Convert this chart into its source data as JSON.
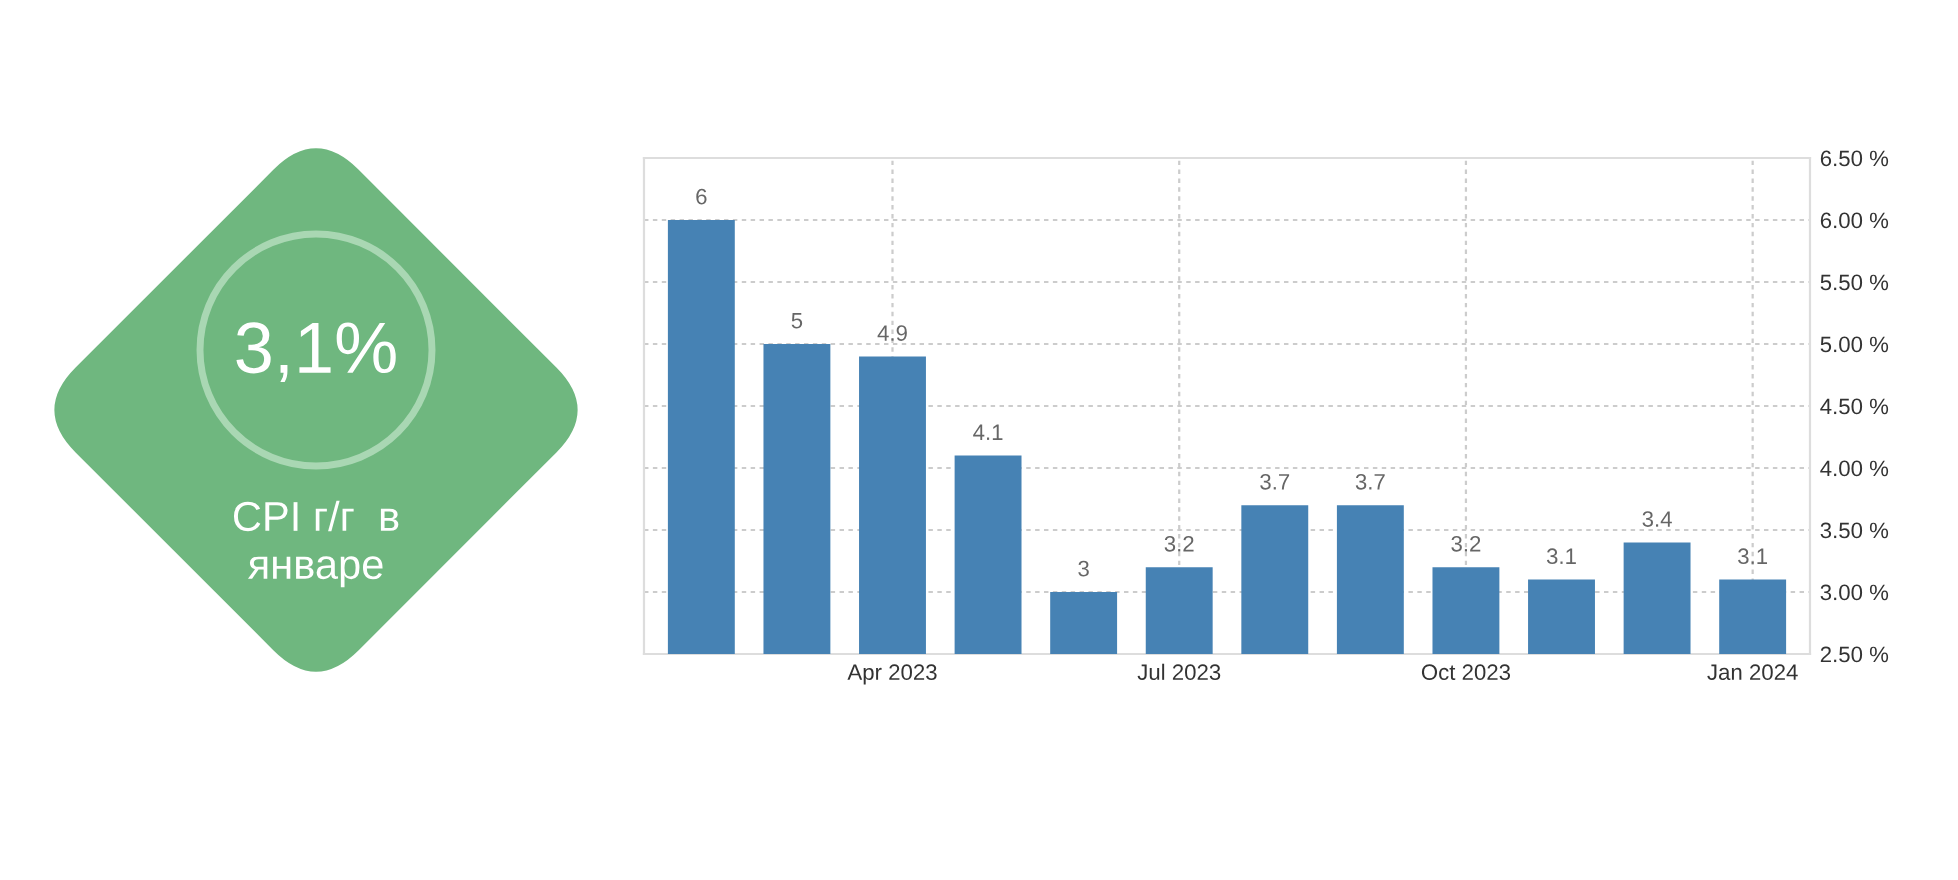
{
  "chart_data": {
    "type": "bar",
    "categories": [
      null,
      null,
      "Apr 2023",
      null,
      null,
      "Jul 2023",
      null,
      null,
      "Oct 2023",
      null,
      null,
      "Jan 2024"
    ],
    "values": [
      6,
      5,
      4.9,
      4.1,
      3,
      3.2,
      3.7,
      3.7,
      3.2,
      3.1,
      3.4,
      3.1
    ],
    "color": "#4682b4",
    "data_labels": true,
    "grid": true,
    "ylim": [
      2.5,
      6.5
    ],
    "yticks": [
      {
        "value": 2.5,
        "label": "2.50 %"
      },
      {
        "value": 3.0,
        "label": "3.00 %"
      },
      {
        "value": 3.5,
        "label": "3.50 %"
      },
      {
        "value": 4.0,
        "label": "4.00 %"
      },
      {
        "value": 4.5,
        "label": "4.50 %"
      },
      {
        "value": 5.0,
        "label": "5.00 %"
      },
      {
        "value": 5.5,
        "label": "5.50 %"
      },
      {
        "value": 6.0,
        "label": "6.00 %"
      },
      {
        "value": 6.5,
        "label": "6.50 %"
      }
    ],
    "annotations": [
      "3,1%",
      "CPI г/г  в\nянваре"
    ]
  }
}
